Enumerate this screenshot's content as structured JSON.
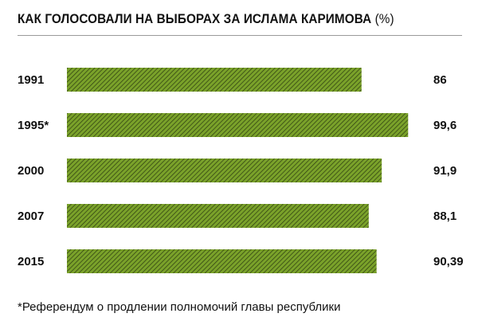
{
  "chart_data": {
    "type": "bar",
    "orientation": "horizontal",
    "title": "КАК ГОЛОСОВАЛИ НА ВЫБОРАХ ЗА ИСЛАМА КАРИМОВА",
    "title_unit": "(%)",
    "categories": [
      "1991",
      "1995*",
      "2000",
      "2007",
      "2015"
    ],
    "values": [
      86,
      99.6,
      91.9,
      88.1,
      90.39
    ],
    "value_labels": [
      "86",
      "99,6",
      "91,9",
      "88,1",
      "90,39"
    ],
    "xlim": [
      0,
      100
    ],
    "grid": false,
    "legend": "none",
    "bar_color": "#7aa22a",
    "hatch_color": "#2b3a10"
  },
  "footnote": "*Референдум о продлении полномочий главы республики"
}
